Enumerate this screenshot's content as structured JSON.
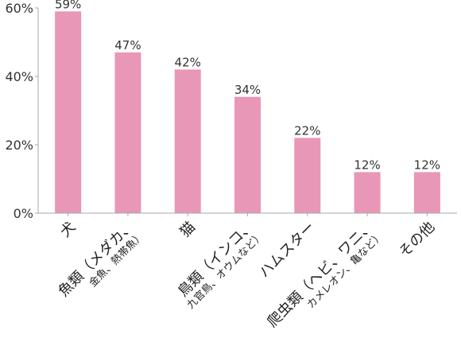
{
  "chart_data": {
    "type": "bar",
    "categories": [
      [
        "犬"
      ],
      [
        "魚類（メダカ、",
        "金魚、熱帯魚）"
      ],
      [
        "猫"
      ],
      [
        "鳥類（インコ、",
        "九官鳥、オウムなど）"
      ],
      [
        "ハムスター"
      ],
      [
        "爬虫類（ヘビ、ワニ、",
        "カメレオン、亀など）"
      ],
      [
        "その他"
      ]
    ],
    "values": [
      59,
      47,
      42,
      34,
      22,
      12,
      12
    ],
    "value_labels": [
      "59%",
      "47%",
      "42%",
      "34%",
      "22%",
      "12%",
      "12%"
    ],
    "y_ticks": [
      0,
      20,
      40,
      60
    ],
    "y_tick_labels": [
      "0%",
      "20%",
      "40%",
      "60%"
    ],
    "ylim": [
      0,
      60
    ],
    "bar_color": "#e997b6",
    "axis_color": "#aaaaaa",
    "grid": false,
    "title": "",
    "xlabel": "",
    "ylabel": ""
  }
}
